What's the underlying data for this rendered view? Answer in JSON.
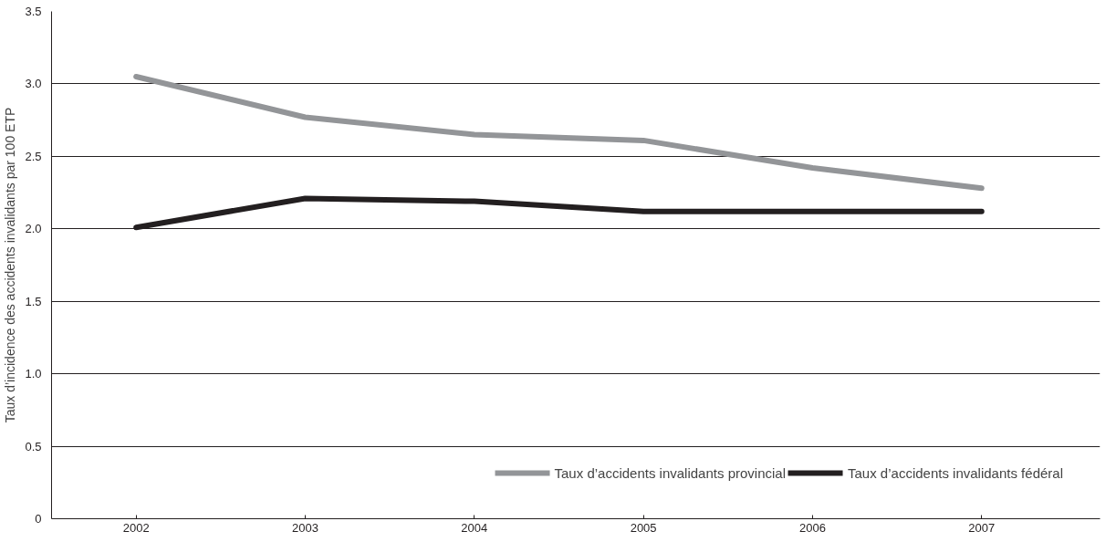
{
  "chart_data": {
    "type": "line",
    "ylabel": "Taux d’incidence des accidents invalidants par 100 ETP",
    "categories": [
      "2002",
      "2003",
      "2004",
      "2005",
      "2006",
      "2007"
    ],
    "series": [
      {
        "name": "Taux d’accidents invalidants provincial",
        "color": "#939598",
        "values": [
          3.05,
          2.77,
          2.65,
          2.61,
          2.42,
          2.28
        ]
      },
      {
        "name": "Taux d’accidents invalidants fédéral",
        "color": "#231f20",
        "values": [
          2.01,
          2.21,
          2.19,
          2.12,
          2.12,
          2.12
        ]
      }
    ],
    "ylim": [
      0,
      3.5
    ],
    "yticks": [
      0,
      0.5,
      {
        "value": 1,
        "label": "1.0"
      },
      1.5,
      {
        "value": 2,
        "label": "2.0"
      },
      2.5,
      {
        "value": 3,
        "label": "3.0"
      },
      3.5
    ],
    "grid": "y",
    "legend": "bottom right",
    "marker": "none",
    "line_style": "solid"
  }
}
